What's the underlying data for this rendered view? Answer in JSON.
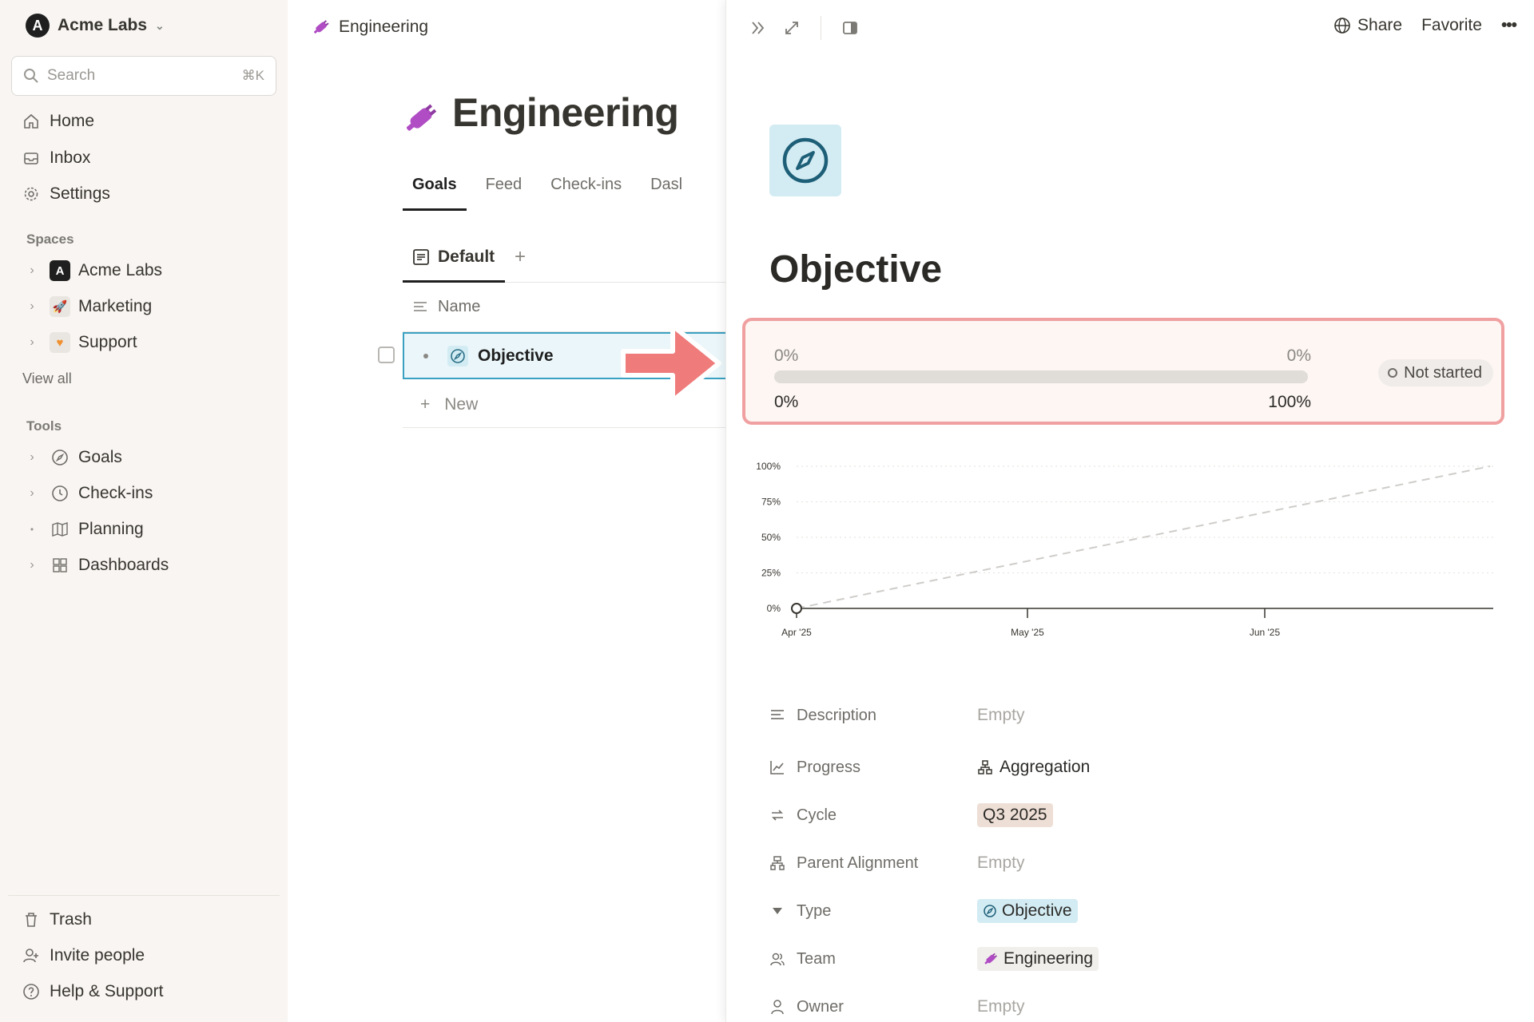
{
  "workspace": {
    "name": "Acme Labs"
  },
  "search": {
    "placeholder": "Search",
    "shortcut": "⌘K"
  },
  "sidebar": {
    "nav": [
      {
        "label": "Home",
        "icon": "home-icon"
      },
      {
        "label": "Inbox",
        "icon": "inbox-icon"
      },
      {
        "label": "Settings",
        "icon": "gear-icon"
      }
    ],
    "spaces_label": "Spaces",
    "spaces": [
      {
        "label": "Acme Labs",
        "icon": "acme-logo-icon"
      },
      {
        "label": "Marketing",
        "icon": "rocket-icon"
      },
      {
        "label": "Support",
        "icon": "heart-icon"
      }
    ],
    "view_all": "View all",
    "tools_label": "Tools",
    "tools": [
      {
        "label": "Goals",
        "icon": "compass-icon"
      },
      {
        "label": "Check-ins",
        "icon": "clock-icon"
      },
      {
        "label": "Planning",
        "icon": "map-icon"
      },
      {
        "label": "Dashboards",
        "icon": "grid-icon"
      }
    ],
    "footer": [
      {
        "label": "Trash",
        "icon": "trash-icon"
      },
      {
        "label": "Invite people",
        "icon": "invite-icon"
      },
      {
        "label": "Help & Support",
        "icon": "help-icon"
      }
    ]
  },
  "main": {
    "breadcrumb": "Engineering",
    "title": "Engineering",
    "tabs": [
      "Goals",
      "Feed",
      "Check-ins",
      "Dasl"
    ],
    "view_tab": "Default",
    "column_name": "Name",
    "row_title": "Objective",
    "new_label": "New"
  },
  "panel": {
    "actions": {
      "share": "Share",
      "favorite": "Favorite",
      "more": "•••"
    },
    "title": "Objective",
    "progress": {
      "top_left": "0%",
      "top_right": "0%",
      "bottom_left": "0%",
      "bottom_right": "100%",
      "value": 0,
      "status": "Not started"
    },
    "properties": {
      "description": {
        "label": "Description",
        "value": "Empty"
      },
      "progress": {
        "label": "Progress",
        "value": "Aggregation"
      },
      "cycle": {
        "label": "Cycle",
        "value": "Q3 2025"
      },
      "parent": {
        "label": "Parent Alignment",
        "value": "Empty"
      },
      "type": {
        "label": "Type",
        "value": "Objective"
      },
      "team": {
        "label": "Team",
        "value": "Engineering"
      },
      "owner": {
        "label": "Owner",
        "value": "Empty"
      }
    }
  },
  "chart_data": {
    "type": "line",
    "y_ticks": [
      "100%",
      "75%",
      "50%",
      "25%",
      "0%"
    ],
    "x_ticks": [
      "Apr '25",
      "May '25",
      "Jun '25"
    ],
    "ylim": [
      0,
      100
    ],
    "series": [
      {
        "values": [
          {
            "x": "Apr '25",
            "y": 0
          }
        ]
      },
      {
        "style": "dashed",
        "values": [
          {
            "x": "Apr '25",
            "y": 0
          },
          {
            "x": "end",
            "y": 100
          }
        ]
      }
    ],
    "grid": true
  },
  "colors": {
    "accent": "#3aa1c2",
    "annotation": "#ef7b7b",
    "sidebar_bg": "#f8f5f2"
  }
}
